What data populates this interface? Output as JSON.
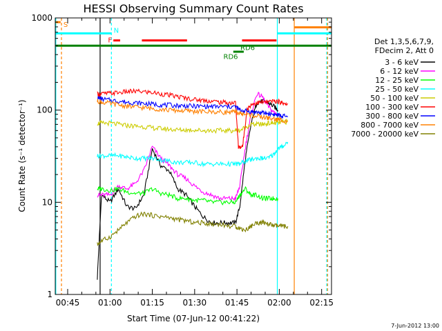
{
  "chart_data": {
    "type": "line",
    "title": "HESSI Observing Summary Count Rates",
    "xlabel": "Start Time (07-Jun-12 00:41:22)",
    "ylabel": "Count Rate (s⁻¹ detector⁻¹)",
    "ylim": [
      1,
      1000
    ],
    "yscale": "log",
    "xlim_minutes": [
      40.6,
      138.5
    ],
    "x_ticks": [
      {
        "label": "00:45",
        "minutes": 45
      },
      {
        "label": "01:00",
        "minutes": 60
      },
      {
        "label": "01:15",
        "minutes": 75
      },
      {
        "label": "01:30",
        "minutes": 90
      },
      {
        "label": "01:45",
        "minutes": 105
      },
      {
        "label": "02:00",
        "minutes": 120
      },
      {
        "label": "02:15",
        "minutes": 135
      }
    ],
    "y_ticks": [
      {
        "label": "1",
        "value": 1
      },
      {
        "label": "10",
        "value": 10
      },
      {
        "label": "100",
        "value": 100
      },
      {
        "label": "1000",
        "value": 1000
      }
    ],
    "legend_header": [
      "Det 1,3,5,6,7,9,",
      "FDecim 2, Att 0"
    ],
    "legend_position": "right",
    "series": [
      {
        "name": "3 - 6 keV",
        "color": "#000000",
        "x": [
          55.5,
          57,
          60,
          63,
          66,
          69,
          72,
          75,
          78,
          81,
          84,
          87,
          90,
          93,
          96,
          99,
          102,
          104.5,
          106,
          108,
          110,
          112,
          114,
          116,
          118,
          119.5
        ],
        "y": [
          1.5,
          12,
          10,
          14,
          9,
          8.5,
          12,
          38,
          25,
          22,
          14,
          12,
          9,
          7,
          6,
          6,
          6,
          6,
          9,
          30,
          70,
          120,
          125,
          120,
          110,
          100
        ]
      },
      {
        "name": "6 - 12 keV",
        "color": "#ff00ff",
        "x": [
          55.5,
          57,
          60,
          63,
          66,
          69,
          72,
          75,
          78,
          81,
          84,
          87,
          90,
          93,
          96,
          99,
          102,
          104.5,
          106,
          108,
          110,
          112,
          114,
          116,
          118,
          119.5
        ],
        "y": [
          12,
          12,
          12,
          15,
          14,
          16,
          22,
          40,
          30,
          25,
          20,
          18,
          15,
          13,
          12,
          11,
          11,
          11,
          15,
          40,
          90,
          150,
          140,
          110,
          95,
          90
        ]
      },
      {
        "name": "12 - 25 keV",
        "color": "#00ff00",
        "x": [
          55.5,
          57,
          60,
          63,
          66,
          69,
          72,
          75,
          78,
          81,
          84,
          87,
          90,
          93,
          96,
          99,
          102,
          104.5,
          106,
          108,
          110,
          112,
          114,
          116,
          118,
          119.5
        ],
        "y": [
          14,
          14,
          13.5,
          14,
          13,
          12.5,
          12.5,
          14,
          12.5,
          12,
          11,
          11,
          10.5,
          10.5,
          10,
          10,
          10,
          10,
          12,
          14,
          12,
          12,
          11,
          11,
          11,
          11
        ]
      },
      {
        "name": "25 - 50 keV",
        "color": "#00ffff",
        "x": [
          55.5,
          57,
          60,
          63,
          66,
          69,
          72,
          75,
          78,
          81,
          84,
          87,
          90,
          93,
          96,
          99,
          102,
          104.5,
          106,
          108,
          110,
          112,
          114,
          116,
          118,
          119.5,
          121,
          123
        ],
        "y": [
          32,
          32,
          32,
          32,
          31,
          30,
          30,
          30,
          29,
          28,
          27,
          27,
          27,
          26,
          26,
          26,
          26,
          26,
          26,
          28,
          29,
          30,
          30,
          30,
          33,
          38,
          40,
          45
        ]
      },
      {
        "name": "50 - 100 keV",
        "color": "#cccc00",
        "x": [
          55.5,
          57,
          60,
          63,
          66,
          69,
          72,
          75,
          78,
          81,
          84,
          87,
          90,
          93,
          96,
          99,
          102,
          104.5,
          106,
          108,
          110,
          112,
          114,
          116,
          118,
          119.5,
          121,
          123
        ],
        "y": [
          72,
          72,
          72,
          70,
          68,
          67,
          66,
          64,
          63,
          62,
          61,
          61,
          61,
          60,
          60,
          60,
          60,
          60,
          60,
          65,
          70,
          70,
          70,
          72,
          72,
          73,
          74,
          75
        ]
      },
      {
        "name": "100 - 300 keV",
        "color": "#ff0000",
        "x": [
          55.5,
          57,
          60,
          63,
          66,
          69,
          72,
          75,
          78,
          81,
          84,
          87,
          90,
          93,
          96,
          99,
          102,
          104.5,
          105.5,
          107,
          108.5,
          110,
          112,
          114,
          116,
          118,
          119.5,
          121,
          123
        ],
        "y": [
          150,
          150,
          152,
          155,
          158,
          160,
          158,
          155,
          150,
          145,
          140,
          135,
          130,
          128,
          125,
          122,
          120,
          120,
          40,
          40,
          100,
          115,
          120,
          122,
          122,
          125,
          124,
          120,
          118
        ]
      },
      {
        "name": "300 - 800 keV",
        "color": "#0000ff",
        "x": [
          55.5,
          57,
          60,
          63,
          66,
          69,
          72,
          75,
          78,
          81,
          84,
          87,
          90,
          93,
          96,
          99,
          102,
          104.5,
          106,
          108,
          110,
          112,
          114,
          116,
          118,
          119.5,
          121,
          123
        ],
        "y": [
          135,
          132,
          128,
          125,
          122,
          120,
          118,
          116,
          114,
          113,
          112,
          111,
          110,
          110,
          109,
          109,
          109,
          109,
          100,
          98,
          96,
          95,
          93,
          92,
          90,
          88,
          86,
          84
        ]
      },
      {
        "name": "800 - 7000 keV",
        "color": "#ff8000",
        "x": [
          55.5,
          57,
          60,
          63,
          66,
          69,
          72,
          75,
          78,
          81,
          84,
          87,
          90,
          93,
          96,
          99,
          102,
          104.5,
          106,
          108,
          110,
          112,
          114,
          116,
          118,
          119.5,
          121,
          123
        ],
        "y": [
          125,
          122,
          118,
          114,
          110,
          108,
          106,
          104,
          102,
          100,
          99,
          98,
          97,
          96,
          96,
          95,
          95,
          95,
          92,
          90,
          88,
          86,
          84,
          82,
          80,
          79,
          78,
          76
        ]
      },
      {
        "name": "7000 - 20000 keV",
        "color": "#808000",
        "x": [
          55.5,
          57,
          60,
          63,
          66,
          69,
          72,
          75,
          78,
          81,
          84,
          87,
          90,
          93,
          96,
          99,
          102,
          104.5,
          106,
          108,
          110,
          112,
          114,
          116,
          118,
          119.5,
          121,
          123
        ],
        "y": [
          3.5,
          3.8,
          4.2,
          5,
          6,
          7,
          7.5,
          7.2,
          7,
          6.8,
          6.5,
          6.3,
          6,
          6,
          5.8,
          5.8,
          5.5,
          5.5,
          5.2,
          5,
          5.5,
          6,
          6,
          5.8,
          5.6,
          5.5,
          5.5,
          5.5
        ]
      }
    ],
    "annotation_labels": [
      "S",
      "N",
      "F",
      "RD6",
      "RD6"
    ],
    "vertical_lines": [
      {
        "minutes": 40.8,
        "color": "#00ffff",
        "style": "solid"
      },
      {
        "minutes": 42.8,
        "color": "#ff8000",
        "style": "dashed"
      },
      {
        "minutes": 60.5,
        "color": "#00ffff",
        "style": "dashed"
      },
      {
        "minutes": 56.5,
        "color": "#000000",
        "style": "solid"
      },
      {
        "minutes": 119.3,
        "color": "#00ffff",
        "style": "solid"
      },
      {
        "minutes": 125.3,
        "color": "#ff8000",
        "style": "solid"
      },
      {
        "minutes": 136.8,
        "color": "#00ffff",
        "style": "dashed"
      },
      {
        "minutes": 137.1,
        "color": "#ff8000",
        "style": "dashed"
      }
    ],
    "status_bars": [
      {
        "label": "S",
        "color": "#ff8000",
        "x0": 40.8,
        "x1": 42.5,
        "level": 900
      },
      {
        "label": "",
        "color": "#00ffff",
        "x0": 40.8,
        "x1": 60.5,
        "level": 680
      },
      {
        "label": "N",
        "color": "#00ffff",
        "x0": 60.5,
        "x1": 60.5,
        "level": 680
      },
      {
        "label": "F",
        "color": "#ff0000",
        "x0": 61.2,
        "x1": 63.6,
        "level": 570
      },
      {
        "label": "",
        "color": "#ff0000",
        "x0": 71.3,
        "x1": 87.3,
        "level": 570
      },
      {
        "label": "",
        "color": "#ff0000",
        "x0": 106.8,
        "x1": 119.0,
        "level": 570
      },
      {
        "label": "",
        "color": "#008000",
        "x0": 40.8,
        "x1": 138.5,
        "level": 500
      },
      {
        "label": "RD6",
        "color": "#008000",
        "x0": 103.7,
        "x1": 107.4,
        "level": 430
      },
      {
        "label": "",
        "color": "#00ffff",
        "x0": 119.3,
        "x1": 138.5,
        "level": 680
      },
      {
        "label": "",
        "color": "#ff8000",
        "x0": 125.3,
        "x1": 138.5,
        "level": 790
      }
    ]
  },
  "footer": {
    "timestamp": "7-Jun-2012 13:00"
  }
}
